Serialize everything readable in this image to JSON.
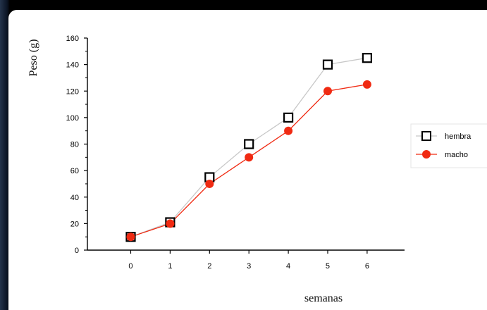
{
  "chart_data": {
    "type": "line",
    "title": "",
    "xlabel": "semanas",
    "ylabel": "Peso (g)",
    "x": [
      0,
      1,
      2,
      3,
      4,
      5,
      6
    ],
    "x_tick_labels": [
      "0",
      "1",
      "2",
      "3",
      "4",
      "5",
      "6"
    ],
    "y_tick_labels": [
      "0",
      "20",
      "40",
      "60",
      "80",
      "100",
      "120",
      "140",
      "160"
    ],
    "xlim": [
      -1.1,
      6.95
    ],
    "ylim": [
      0,
      160
    ],
    "grid": false,
    "legend": "right",
    "series": [
      {
        "name": "hembra",
        "values": [
          10,
          21,
          55,
          80,
          100,
          140,
          145
        ],
        "marker": "open-square",
        "line_color": "#c8c8c8",
        "marker_color": "#000000"
      },
      {
        "name": "macho",
        "values": [
          10,
          20,
          50,
          70,
          90,
          120,
          125
        ],
        "marker": "filled-circle",
        "line_color": "#f02a12",
        "marker_color": "#f02a12"
      }
    ]
  }
}
